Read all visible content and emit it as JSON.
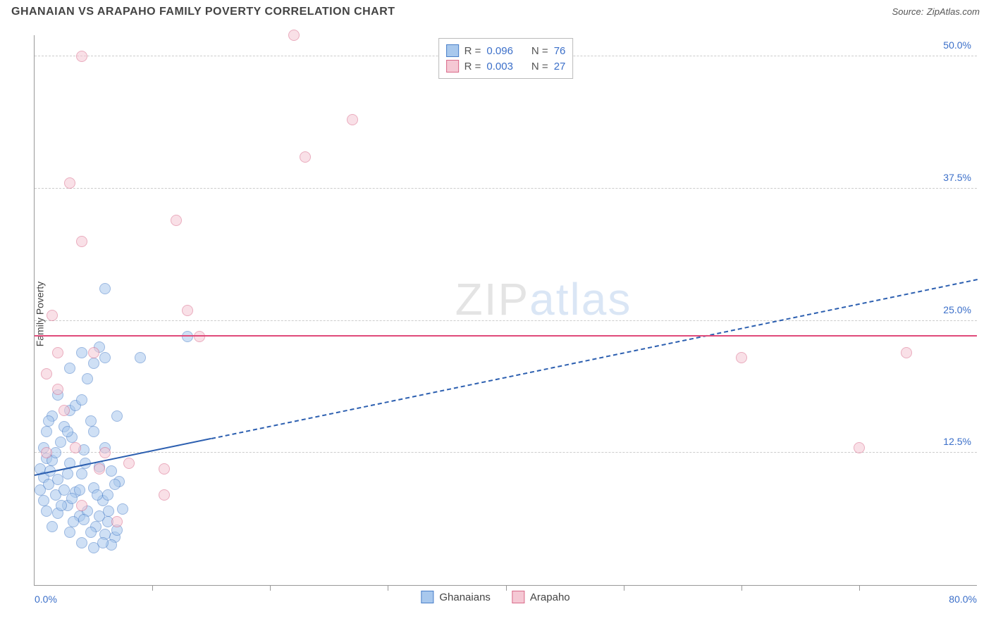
{
  "title": "GHANAIAN VS ARAPAHO FAMILY POVERTY CORRELATION CHART",
  "source_label": "Source:",
  "source_value": "ZipAtlas.com",
  "y_axis_label": "Family Poverty",
  "watermark_a": "ZIP",
  "watermark_b": "atlas",
  "chart": {
    "type": "scatter",
    "xlim": [
      0,
      80
    ],
    "ylim": [
      0,
      52
    ],
    "x_tick_step": 10,
    "y_ticks": [
      12.5,
      25.0,
      37.5,
      50.0
    ],
    "y_tick_labels": [
      "12.5%",
      "25.0%",
      "37.5%",
      "50.0%"
    ],
    "x_start_label": "0.0%",
    "x_end_label": "80.0%",
    "background_color": "#ffffff",
    "grid_color": "#cccccc",
    "point_radius": 8,
    "point_opacity": 0.55,
    "series": [
      {
        "name": "Ghanaians",
        "fill": "#a8c8ed",
        "stroke": "#4a7fc9",
        "r_value": "0.096",
        "n_value": "76",
        "trend": {
          "y_start": 10.5,
          "y_end": 29.0,
          "solid_until_x": 15,
          "color": "#2c5fb0",
          "width": 2.5
        },
        "points": [
          [
            0.5,
            11.0
          ],
          [
            0.8,
            10.2
          ],
          [
            1.0,
            12.0
          ],
          [
            1.2,
            9.5
          ],
          [
            1.5,
            11.8
          ],
          [
            1.8,
            8.5
          ],
          [
            2.0,
            10.0
          ],
          [
            2.2,
            13.5
          ],
          [
            2.5,
            9.0
          ],
          [
            2.8,
            7.5
          ],
          [
            3.0,
            11.5
          ],
          [
            3.2,
            14.0
          ],
          [
            3.5,
            8.8
          ],
          [
            3.8,
            6.5
          ],
          [
            4.0,
            10.5
          ],
          [
            4.2,
            12.8
          ],
          [
            4.5,
            7.0
          ],
          [
            4.8,
            15.5
          ],
          [
            5.0,
            9.2
          ],
          [
            5.2,
            5.5
          ],
          [
            5.5,
            11.2
          ],
          [
            5.8,
            8.0
          ],
          [
            6.0,
            13.0
          ],
          [
            6.2,
            6.0
          ],
          [
            6.5,
            10.8
          ],
          [
            6.8,
            4.5
          ],
          [
            7.0,
            16.0
          ],
          [
            7.2,
            9.8
          ],
          [
            7.5,
            7.2
          ],
          [
            1.0,
            14.5
          ],
          [
            2.0,
            6.8
          ],
          [
            3.0,
            5.0
          ],
          [
            4.0,
            4.0
          ],
          [
            5.0,
            3.5
          ],
          [
            5.0,
            21.0
          ],
          [
            4.0,
            22.0
          ],
          [
            3.0,
            16.5
          ],
          [
            1.5,
            16.0
          ],
          [
            2.5,
            15.0
          ],
          [
            6.0,
            4.8
          ],
          [
            6.5,
            3.8
          ],
          [
            7.0,
            5.2
          ],
          [
            3.5,
            17.0
          ],
          [
            4.5,
            19.5
          ],
          [
            2.0,
            18.0
          ],
          [
            1.0,
            7.0
          ],
          [
            1.5,
            5.5
          ],
          [
            0.8,
            13.0
          ],
          [
            1.2,
            15.5
          ],
          [
            2.8,
            10.5
          ],
          [
            3.2,
            8.2
          ],
          [
            4.2,
            6.2
          ],
          [
            5.5,
            6.5
          ],
          [
            6.2,
            8.5
          ],
          [
            6.0,
            21.5
          ],
          [
            0.5,
            9.0
          ],
          [
            0.8,
            8.0
          ],
          [
            1.3,
            10.8
          ],
          [
            1.8,
            12.5
          ],
          [
            2.3,
            7.5
          ],
          [
            2.8,
            14.5
          ],
          [
            3.3,
            6.0
          ],
          [
            3.8,
            9.0
          ],
          [
            4.3,
            11.5
          ],
          [
            4.8,
            5.0
          ],
          [
            5.3,
            8.5
          ],
          [
            5.8,
            4.0
          ],
          [
            6.3,
            7.0
          ],
          [
            6.8,
            9.5
          ],
          [
            4.0,
            17.5
          ],
          [
            5.0,
            14.5
          ],
          [
            9.0,
            21.5
          ],
          [
            6.0,
            28.0
          ],
          [
            13.0,
            23.5
          ],
          [
            5.5,
            22.5
          ],
          [
            3.0,
            20.5
          ]
        ]
      },
      {
        "name": "Arapaho",
        "fill": "#f5c8d4",
        "stroke": "#d96a8a",
        "r_value": "0.003",
        "n_value": "27",
        "trend": {
          "y_flat": 23.5,
          "color": "#e04a7a",
          "width": 2.5
        },
        "points": [
          [
            22.0,
            52.0
          ],
          [
            4.0,
            50.0
          ],
          [
            27.0,
            44.0
          ],
          [
            23.0,
            40.5
          ],
          [
            3.0,
            38.0
          ],
          [
            12.0,
            34.5
          ],
          [
            4.0,
            32.5
          ],
          [
            13.0,
            26.0
          ],
          [
            1.5,
            25.5
          ],
          [
            14.0,
            23.5
          ],
          [
            2.0,
            22.0
          ],
          [
            5.0,
            22.0
          ],
          [
            8.0,
            11.5
          ],
          [
            1.0,
            20.0
          ],
          [
            2.0,
            18.5
          ],
          [
            6.0,
            12.5
          ],
          [
            3.5,
            13.0
          ],
          [
            5.5,
            11.0
          ],
          [
            11.0,
            8.5
          ],
          [
            11.0,
            11.0
          ],
          [
            7.0,
            6.0
          ],
          [
            2.5,
            16.5
          ],
          [
            60.0,
            21.5
          ],
          [
            74.0,
            22.0
          ],
          [
            70.0,
            13.0
          ],
          [
            1.0,
            12.5
          ],
          [
            4.0,
            7.5
          ]
        ]
      }
    ]
  },
  "legend_top": {
    "r_label": "R =",
    "n_label": "N ="
  },
  "legend_bottom": {
    "series1": "Ghanaians",
    "series2": "Arapaho"
  }
}
